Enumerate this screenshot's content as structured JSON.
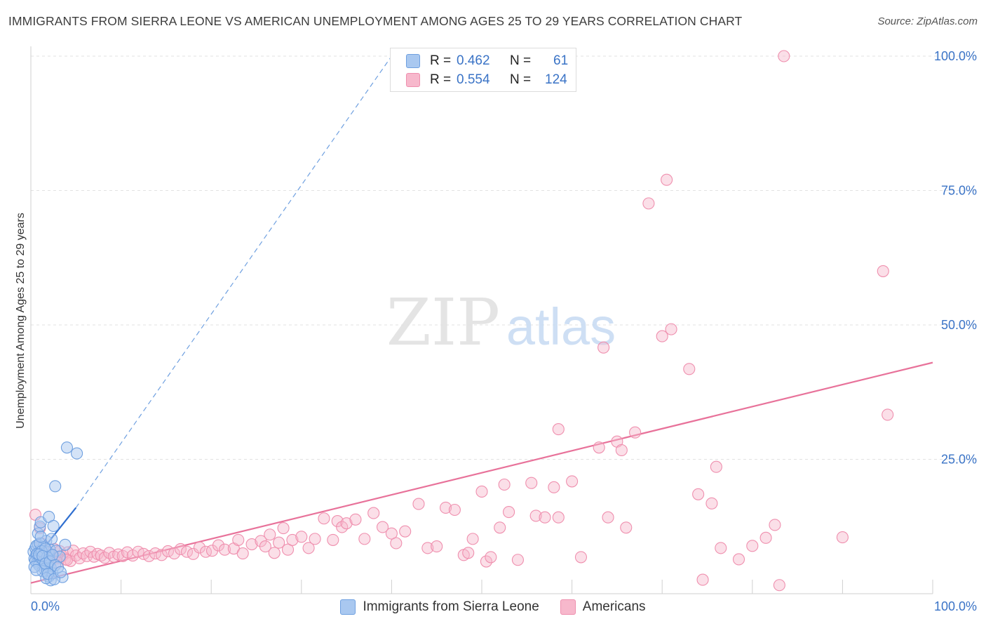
{
  "title": "IMMIGRANTS FROM SIERRA LEONE VS AMERICAN UNEMPLOYMENT AMONG AGES 25 TO 29 YEARS CORRELATION CHART",
  "source": "Source: ZipAtlas.com",
  "watermark": {
    "zip": "ZIP",
    "atlas": "atlas"
  },
  "legend_top": [
    {
      "r_label": "R =",
      "r_value": "0.462",
      "n_label": "N =",
      "n_value": "61"
    },
    {
      "r_label": "R =",
      "r_value": "0.554",
      "n_label": "N =",
      "n_value": "124"
    }
  ],
  "legend_bottom": [
    "Immigrants from Sierra Leone",
    "Americans"
  ],
  "colors": {
    "blue_fill": "#a9c8f0",
    "blue_edge": "#6fa0e0",
    "blue_line": "#2f6fd0",
    "pink_fill": "#f7b8cc",
    "pink_edge": "#ef8fae",
    "pink_line": "#e8729a",
    "axis_text": "#3a73c6",
    "grid": "#e2e2e2"
  },
  "chart_data": {
    "type": "scatter",
    "title": "IMMIGRANTS FROM SIERRA LEONE VS AMERICAN UNEMPLOYMENT AMONG AGES 25 TO 29 YEARS CORRELATION CHART",
    "xlabel": "",
    "ylabel": "Unemployment Among Ages 25 to 29 years",
    "xlim": [
      0,
      100
    ],
    "ylim": [
      0,
      102
    ],
    "x_tick_labels": [
      {
        "value": 0,
        "label": "0.0%"
      },
      {
        "value": 100,
        "label": "100.0%"
      }
    ],
    "y_tick_labels": [
      {
        "value": 25,
        "label": "25.0%"
      },
      {
        "value": 50,
        "label": "50.0%"
      },
      {
        "value": 75,
        "label": "75.0%"
      },
      {
        "value": 100,
        "label": "100.0%"
      }
    ],
    "series": [
      {
        "name": "Immigrants from Sierra Leone",
        "color": "blue",
        "R": 0.462,
        "N": 61,
        "trend": {
          "x0": 0,
          "y0": 5.5,
          "x1": 5,
          "y1": 16,
          "dashed_to_x": 40,
          "dashed_to_y": 100
        },
        "points": [
          [
            0.3,
            7.8
          ],
          [
            0.4,
            6.5
          ],
          [
            0.5,
            8.5
          ],
          [
            0.6,
            7.2
          ],
          [
            0.7,
            5.8
          ],
          [
            0.8,
            9.1
          ],
          [
            0.9,
            6.9
          ],
          [
            1.0,
            8.0
          ],
          [
            1.1,
            7.5
          ],
          [
            1.2,
            6.2
          ],
          [
            1.3,
            5.5
          ],
          [
            1.4,
            8.7
          ],
          [
            1.5,
            7.0
          ],
          [
            1.6,
            6.4
          ],
          [
            1.7,
            9.8
          ],
          [
            1.8,
            5.1
          ],
          [
            1.9,
            7.7
          ],
          [
            2.0,
            6.6
          ],
          [
            2.1,
            8.2
          ],
          [
            2.2,
            4.8
          ],
          [
            0.5,
            6.1
          ],
          [
            0.6,
            8.9
          ],
          [
            0.7,
            7.4
          ],
          [
            0.9,
            5.3
          ],
          [
            1.0,
            9.4
          ],
          [
            1.2,
            7.9
          ],
          [
            1.4,
            6.0
          ],
          [
            1.5,
            4.6
          ],
          [
            1.6,
            8.4
          ],
          [
            1.8,
            6.8
          ],
          [
            2.0,
            3.2
          ],
          [
            2.2,
            2.5
          ],
          [
            2.4,
            3.8
          ],
          [
            1.3,
            4.2
          ],
          [
            1.7,
            2.9
          ],
          [
            0.8,
            11.2
          ],
          [
            1.0,
            12.5
          ],
          [
            1.1,
            13.3
          ],
          [
            2.0,
            14.3
          ],
          [
            2.3,
            10.2
          ],
          [
            2.5,
            12.6
          ],
          [
            2.8,
            8.0
          ],
          [
            3.2,
            6.9
          ],
          [
            3.5,
            3.1
          ],
          [
            3.8,
            9.1
          ],
          [
            4.0,
            27.2
          ],
          [
            5.1,
            26.1
          ],
          [
            2.7,
            20.0
          ],
          [
            0.4,
            5.0
          ],
          [
            0.6,
            4.4
          ],
          [
            0.9,
            7.3
          ],
          [
            1.3,
            7.0
          ],
          [
            1.6,
            5.6
          ],
          [
            2.1,
            6.0
          ],
          [
            2.4,
            7.2
          ],
          [
            2.7,
            5.3
          ],
          [
            3.0,
            4.9
          ],
          [
            1.9,
            3.7
          ],
          [
            2.6,
            2.7
          ],
          [
            3.3,
            4.0
          ],
          [
            1.1,
            10.6
          ]
        ]
      },
      {
        "name": "Americans",
        "color": "pink",
        "R": 0.554,
        "N": 124,
        "trend": {
          "x0": 0,
          "y0": 2.0,
          "x1": 100,
          "y1": 43.0
        },
        "points": [
          [
            0.5,
            14.7
          ],
          [
            1.0,
            12.2
          ],
          [
            1.2,
            9.4
          ],
          [
            1.5,
            8.0
          ],
          [
            1.8,
            7.6
          ],
          [
            2.0,
            6.8
          ],
          [
            2.3,
            7.3
          ],
          [
            2.6,
            8.3
          ],
          [
            2.9,
            6.6
          ],
          [
            3.2,
            7.9
          ],
          [
            3.5,
            7.0
          ],
          [
            3.8,
            6.4
          ],
          [
            4.1,
            7.7
          ],
          [
            4.4,
            6.1
          ],
          [
            4.7,
            8.0
          ],
          [
            5.0,
            7.1
          ],
          [
            5.4,
            6.6
          ],
          [
            5.8,
            7.5
          ],
          [
            6.2,
            7.0
          ],
          [
            6.6,
            7.8
          ],
          [
            7.0,
            6.9
          ],
          [
            7.4,
            7.4
          ],
          [
            7.8,
            7.1
          ],
          [
            8.2,
            6.7
          ],
          [
            8.7,
            7.6
          ],
          [
            9.2,
            6.9
          ],
          [
            9.7,
            7.3
          ],
          [
            10.2,
            7.0
          ],
          [
            10.7,
            7.7
          ],
          [
            11.3,
            7.1
          ],
          [
            11.9,
            7.8
          ],
          [
            12.5,
            7.4
          ],
          [
            13.1,
            7.0
          ],
          [
            13.8,
            7.5
          ],
          [
            14.5,
            7.2
          ],
          [
            15.2,
            7.9
          ],
          [
            15.9,
            7.5
          ],
          [
            16.6,
            8.3
          ],
          [
            17.3,
            7.8
          ],
          [
            18.0,
            7.4
          ],
          [
            18.7,
            8.6
          ],
          [
            19.4,
            7.8
          ],
          [
            20.1,
            8.0
          ],
          [
            20.8,
            9.0
          ],
          [
            21.5,
            8.2
          ],
          [
            22.5,
            8.4
          ],
          [
            23.0,
            10.0
          ],
          [
            23.5,
            7.5
          ],
          [
            24.5,
            9.2
          ],
          [
            25.5,
            9.8
          ],
          [
            26.0,
            8.8
          ],
          [
            26.5,
            11.0
          ],
          [
            27.0,
            7.6
          ],
          [
            27.5,
            9.5
          ],
          [
            28.0,
            12.2
          ],
          [
            28.5,
            8.2
          ],
          [
            29.0,
            10.0
          ],
          [
            30.0,
            10.6
          ],
          [
            30.8,
            8.5
          ],
          [
            31.5,
            10.2
          ],
          [
            32.5,
            14.0
          ],
          [
            33.5,
            10.0
          ],
          [
            34.0,
            13.5
          ],
          [
            34.5,
            12.4
          ],
          [
            35.0,
            13.1
          ],
          [
            36.0,
            13.8
          ],
          [
            37.0,
            10.2
          ],
          [
            38.0,
            15.0
          ],
          [
            39.0,
            12.4
          ],
          [
            40.0,
            11.2
          ],
          [
            40.5,
            9.4
          ],
          [
            41.5,
            11.6
          ],
          [
            43.0,
            16.7
          ],
          [
            44.0,
            8.5
          ],
          [
            45.0,
            8.8
          ],
          [
            46.0,
            16.0
          ],
          [
            47.0,
            15.6
          ],
          [
            48.0,
            7.2
          ],
          [
            48.5,
            7.6
          ],
          [
            49.0,
            10.2
          ],
          [
            50.0,
            19.0
          ],
          [
            50.5,
            6.0
          ],
          [
            51.0,
            6.8
          ],
          [
            52.0,
            12.3
          ],
          [
            52.5,
            20.3
          ],
          [
            53.0,
            15.2
          ],
          [
            54.0,
            6.3
          ],
          [
            55.5,
            20.6
          ],
          [
            56.0,
            14.5
          ],
          [
            57.0,
            14.2
          ],
          [
            58.0,
            19.8
          ],
          [
            58.5,
            14.2
          ],
          [
            60.0,
            20.9
          ],
          [
            61.0,
            6.8
          ],
          [
            63.0,
            27.2
          ],
          [
            64.0,
            14.2
          ],
          [
            65.0,
            28.3
          ],
          [
            65.5,
            26.7
          ],
          [
            66.0,
            12.3
          ],
          [
            68.5,
            72.6
          ],
          [
            70.0,
            47.9
          ],
          [
            71.0,
            49.2
          ],
          [
            73.0,
            41.8
          ],
          [
            74.0,
            18.5
          ],
          [
            74.5,
            2.6
          ],
          [
            75.5,
            16.8
          ],
          [
            76.0,
            23.6
          ],
          [
            76.5,
            8.5
          ],
          [
            78.5,
            6.4
          ],
          [
            80.0,
            8.9
          ],
          [
            81.5,
            10.4
          ],
          [
            82.5,
            12.8
          ],
          [
            83.0,
            1.6
          ],
          [
            90.0,
            10.5
          ],
          [
            94.5,
            60.0
          ],
          [
            95.0,
            33.3
          ],
          [
            1.5,
            7.2
          ],
          [
            3.0,
            5.8
          ],
          [
            4.0,
            6.3
          ],
          [
            67.0,
            30.0
          ],
          [
            70.5,
            77.0
          ],
          [
            58.5,
            30.6
          ],
          [
            63.5,
            45.8
          ],
          [
            83.5,
            100.0
          ]
        ]
      }
    ]
  }
}
